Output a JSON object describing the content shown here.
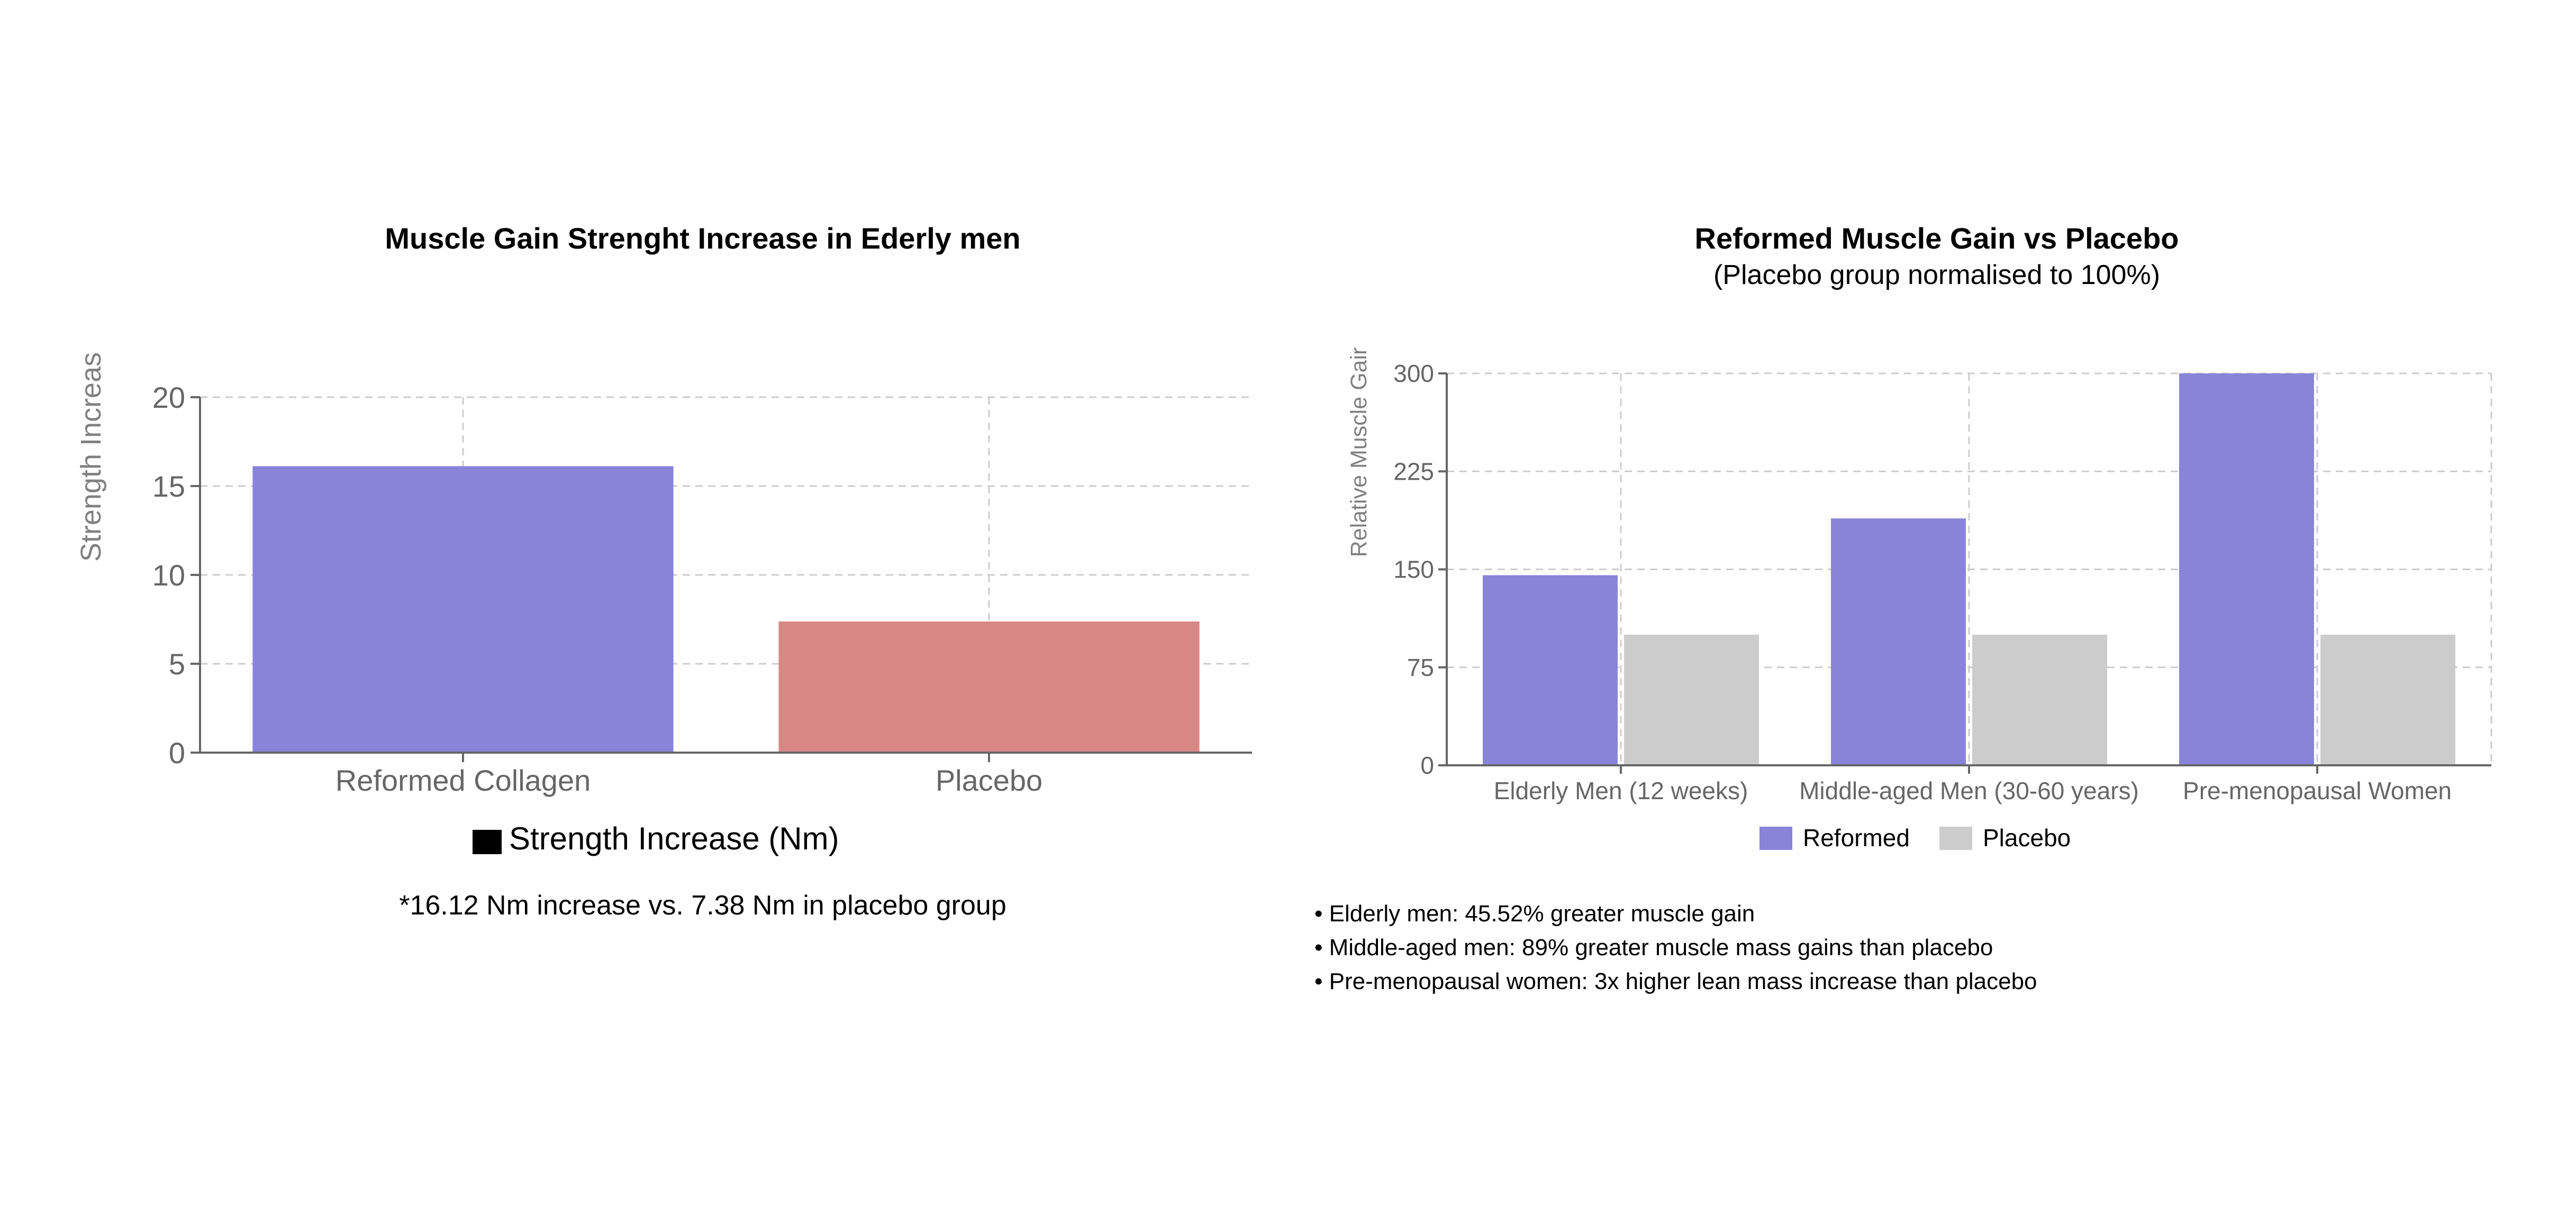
{
  "chart_data": [
    {
      "type": "bar",
      "title": "Muscle Gain Strenght Increase in Ederly men",
      "ylabel": "Strength Increas",
      "categories": [
        "Reformed Collagen",
        "Placebo"
      ],
      "series": [
        {
          "name": "Strength Increase (Nm)",
          "values": [
            16.12,
            7.38
          ],
          "colors": [
            "#8884d8",
            "#d88884"
          ]
        }
      ],
      "ylim": [
        0,
        20
      ],
      "yticks": [
        0,
        5,
        10,
        15,
        20
      ],
      "grid": true,
      "legend": "bottom",
      "legend_swatch_color": "#000000",
      "note": "*16.12 Nm increase vs. 7.38 Nm in placebo group"
    },
    {
      "type": "bar",
      "title": "Reformed Muscle Gain vs Placebo",
      "subtitle": "(Placebo group normalised to 100%)",
      "ylabel": "Relative Muscle Gair",
      "categories": [
        "Elderly Men (12 weeks)",
        "Middle-aged Men (30-60 years)",
        "Pre-menopausal Women"
      ],
      "series": [
        {
          "name": "Reformed",
          "values": [
            145.52,
            189,
            300
          ],
          "color": "#8884d8"
        },
        {
          "name": "Placebo",
          "values": [
            100,
            100,
            100
          ],
          "color": "#cccccc"
        }
      ],
      "ylim": [
        0,
        300
      ],
      "yticks": [
        0,
        75,
        150,
        225,
        300
      ],
      "grid": true,
      "legend": "bottom",
      "notes": [
        "• Elderly men: 45.52% greater muscle gain",
        "• Middle-aged men: 89% greater muscle mass gains than placebo",
        "• Pre-menopausal women: 3x higher lean mass increase than placebo"
      ]
    }
  ]
}
